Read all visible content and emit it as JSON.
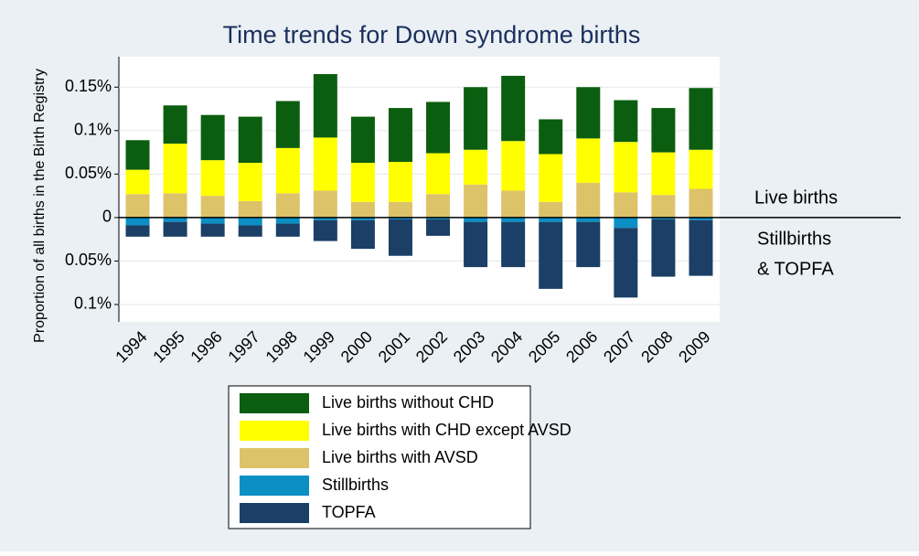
{
  "chart_data": {
    "type": "bar",
    "title": "Time trends for Down syndrome births",
    "ylabel": "Proportion of all births in the Birth Registry",
    "annotations": [
      "Live births",
      "Stillbirths",
      "& TOPFA"
    ],
    "categories": [
      "1994",
      "1995",
      "1996",
      "1997",
      "1998",
      "1999",
      "2000",
      "2001",
      "2002",
      "2003",
      "2004",
      "2005",
      "2006",
      "2007",
      "2008",
      "2009"
    ],
    "series": [
      {
        "name": "Live births without CHD",
        "color": "#0b5e0f",
        "values": [
          0.034,
          0.044,
          0.052,
          0.053,
          0.054,
          0.073,
          0.053,
          0.062,
          0.059,
          0.072,
          0.075,
          0.04,
          0.059,
          0.048,
          0.051,
          0.071
        ]
      },
      {
        "name": "Live births with CHD except AVSD",
        "color": "#ffff00",
        "values": [
          0.028,
          0.057,
          0.041,
          0.044,
          0.052,
          0.061,
          0.045,
          0.046,
          0.047,
          0.04,
          0.057,
          0.055,
          0.051,
          0.058,
          0.049,
          0.045
        ]
      },
      {
        "name": "Live births with AVSD",
        "color": "#dcc36a",
        "values": [
          0.027,
          0.028,
          0.025,
          0.019,
          0.028,
          0.031,
          0.018,
          0.018,
          0.027,
          0.038,
          0.031,
          0.018,
          0.04,
          0.029,
          0.026,
          0.033
        ]
      },
      {
        "name": "Stillbirths",
        "color": "#0b8fc4",
        "values": [
          -0.009,
          -0.005,
          -0.007,
          -0.009,
          -0.007,
          -0.003,
          -0.003,
          -0.002,
          -0.002,
          -0.005,
          -0.005,
          -0.005,
          -0.005,
          -0.012,
          -0.002,
          -0.003
        ]
      },
      {
        "name": "TOPFA",
        "color": "#1b3f66",
        "values": [
          -0.013,
          -0.017,
          -0.015,
          -0.013,
          -0.015,
          -0.024,
          -0.033,
          -0.042,
          -0.019,
          -0.052,
          -0.052,
          -0.077,
          -0.052,
          -0.08,
          -0.066,
          -0.064
        ]
      }
    ],
    "ylim": [
      -0.12,
      0.185
    ],
    "yticks": [
      {
        "value": 0.15,
        "label": "0.15%"
      },
      {
        "value": 0.1,
        "label": "0.1%"
      },
      {
        "value": 0.05,
        "label": "0.05%"
      },
      0,
      {
        "value": -0.05,
        "label": "0.05%"
      },
      {
        "value": -0.1,
        "label": "0.1%"
      }
    ],
    "grid": true
  }
}
